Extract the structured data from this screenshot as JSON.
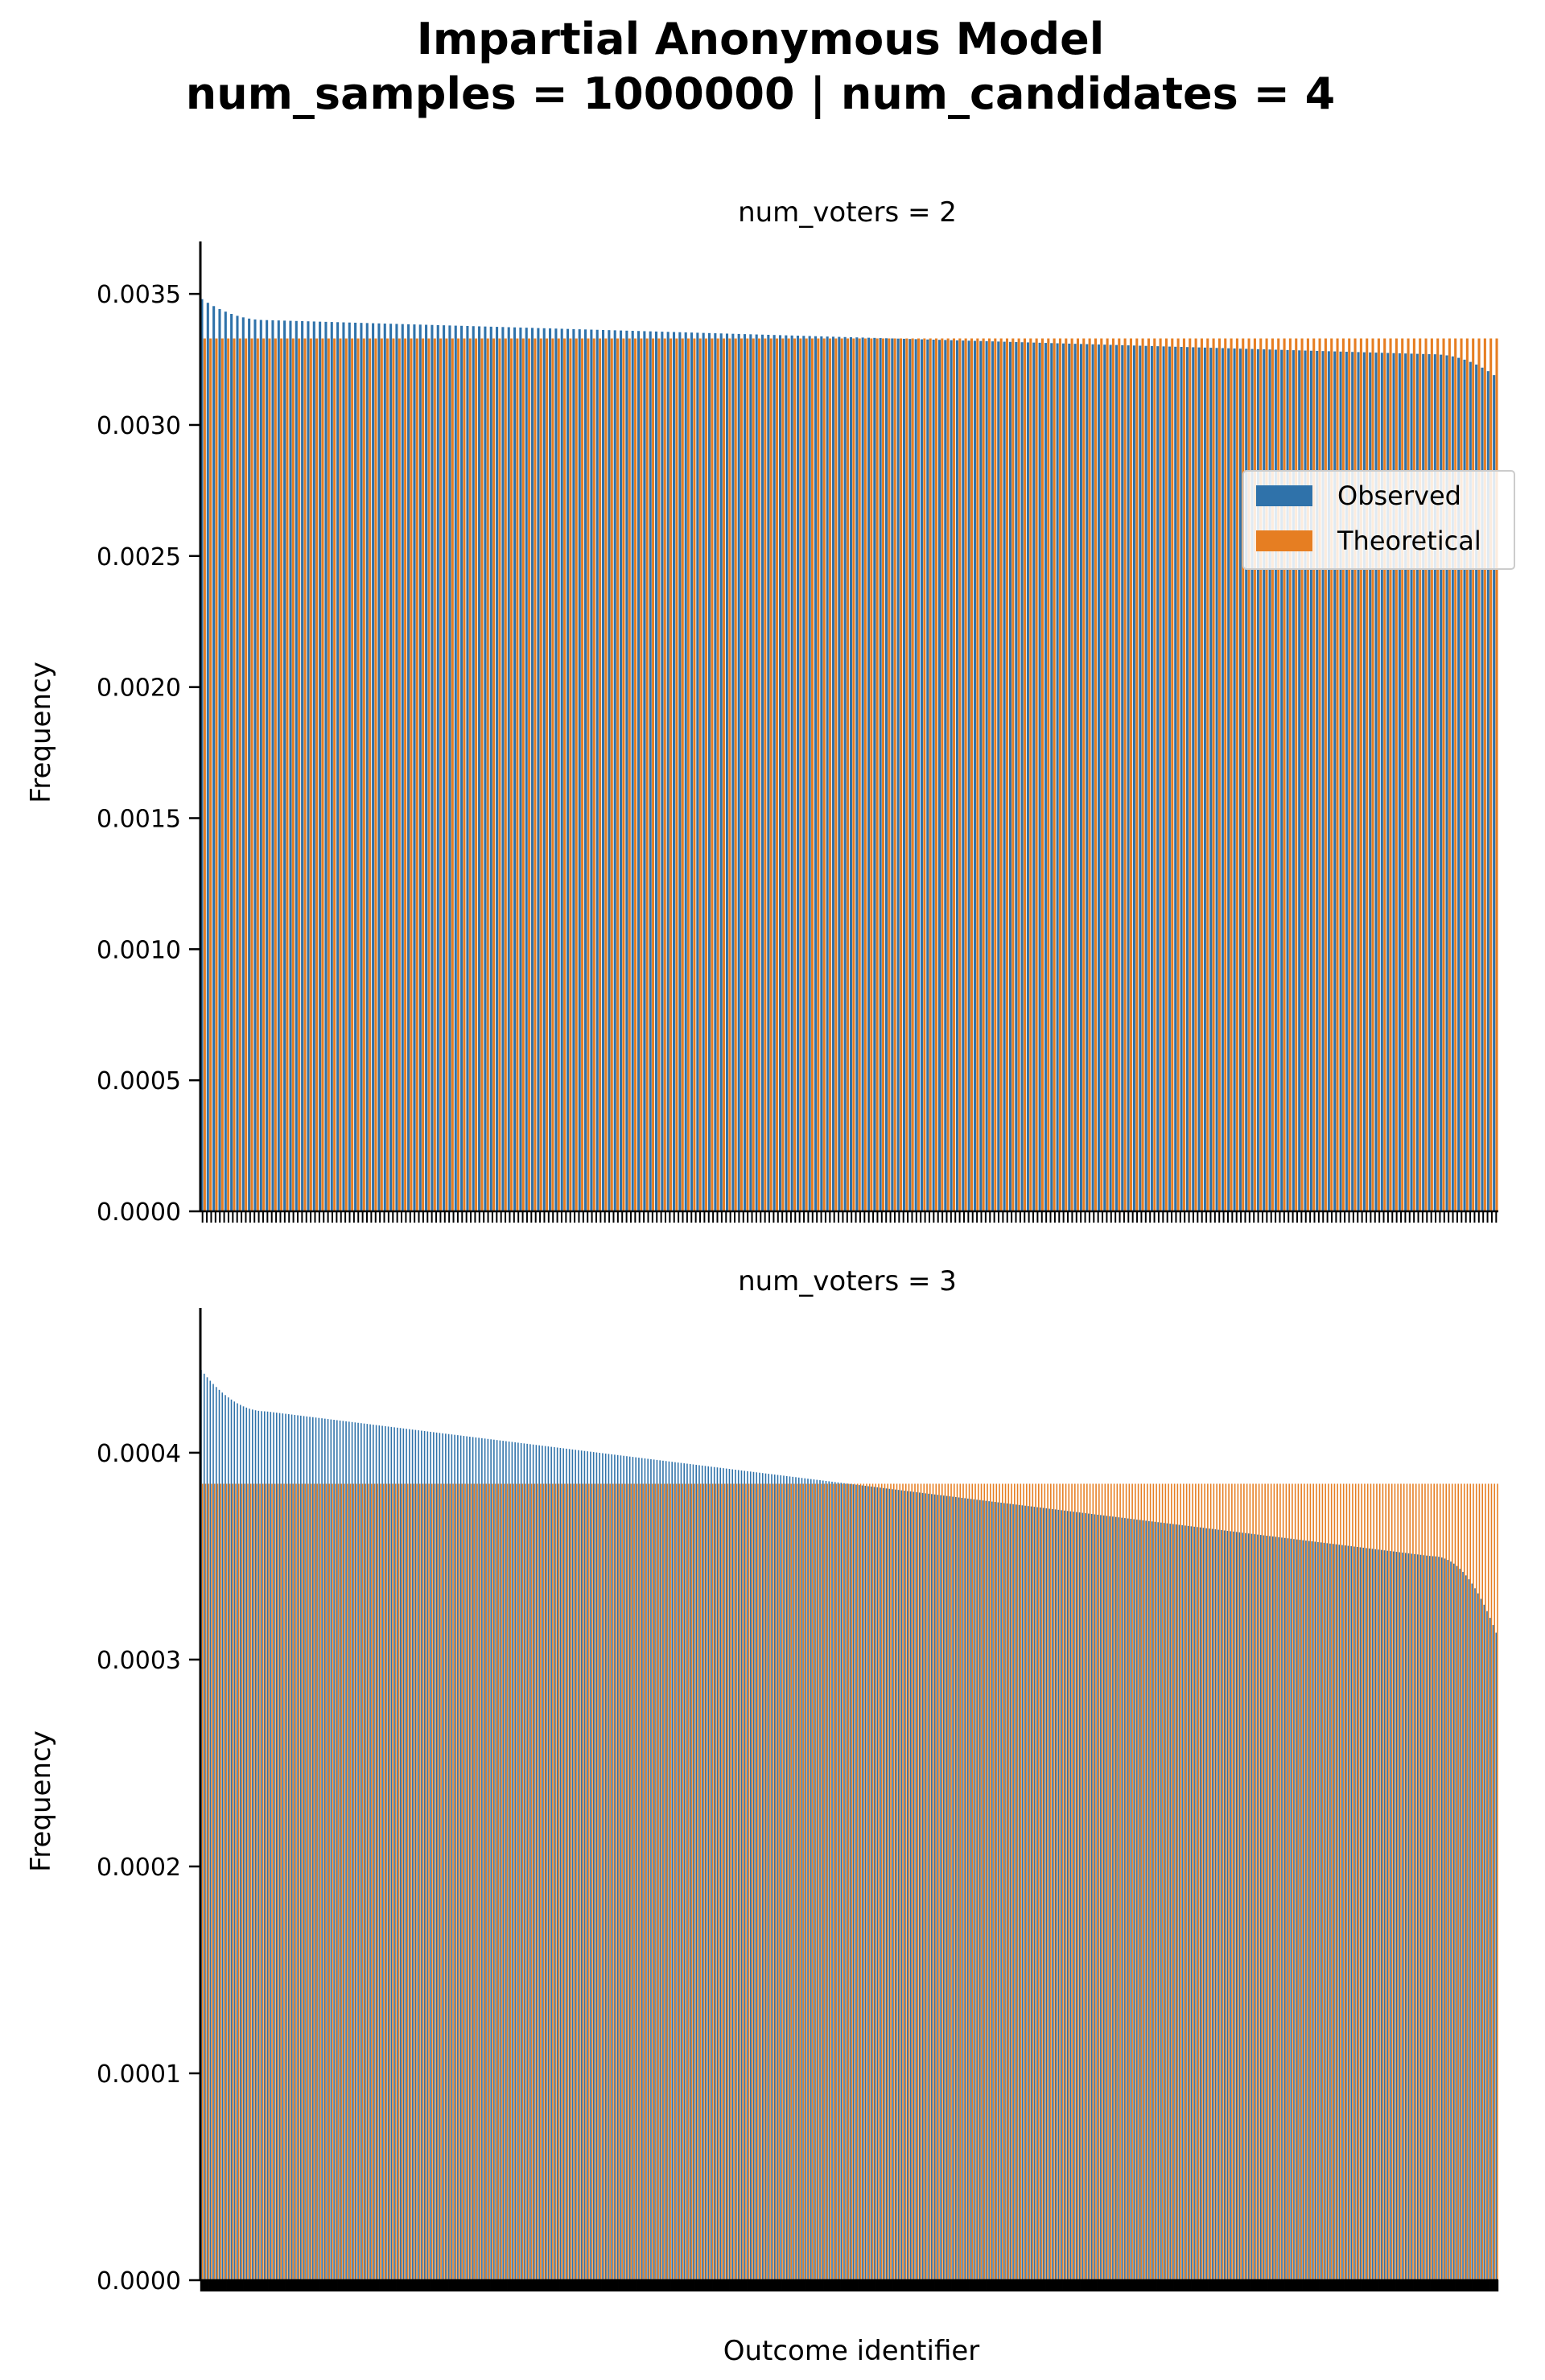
{
  "figure": {
    "title_line1": "Impartial Anonymous Model",
    "title_line2": "num_samples = 1000000 | num_candidates = 4"
  },
  "colors": {
    "observed": "#2f72aa",
    "theoretical": "#e67e22"
  },
  "legend": {
    "placement": "right",
    "entries": [
      "Observed",
      "Theoretical"
    ]
  },
  "chart_data": [
    {
      "type": "bar",
      "subtitle": "num_voters = 2",
      "ylabel": "Frequency",
      "xlabel": "",
      "ylim": [
        0,
        0.0037
      ],
      "yticks": [
        "0.0000",
        "0.0005",
        "0.0010",
        "0.0015",
        "0.0020",
        "0.0025",
        "0.0030",
        "0.0035"
      ],
      "ytick_values": [
        0,
        0.0005,
        0.001,
        0.0015,
        0.002,
        0.0025,
        0.003,
        0.0035
      ],
      "num_outcomes": 300,
      "sorted_descending": true,
      "series": [
        {
          "name": "Observed",
          "first": 0.00348,
          "start_plateau": 0.0034,
          "end_plateau": 0.00327,
          "last": 0.00319
        },
        {
          "name": "Theoretical",
          "constant": 0.00333
        }
      ]
    },
    {
      "type": "bar",
      "subtitle": "num_voters = 3",
      "ylabel": "Frequency",
      "xlabel": "Outcome identifier",
      "ylim": [
        0,
        0.00047
      ],
      "yticks": [
        "0.0000",
        "0.0001",
        "0.0002",
        "0.0003",
        "0.0004"
      ],
      "ytick_values": [
        0,
        0.0001,
        0.0002,
        0.0003,
        0.0004
      ],
      "num_outcomes": 2600,
      "sorted_descending": true,
      "series": [
        {
          "name": "Observed",
          "first": 0.00044,
          "start_plateau": 0.00042,
          "end_plateau": 0.00035,
          "last": 0.000313
        },
        {
          "name": "Theoretical",
          "constant": 0.000385
        }
      ]
    }
  ]
}
